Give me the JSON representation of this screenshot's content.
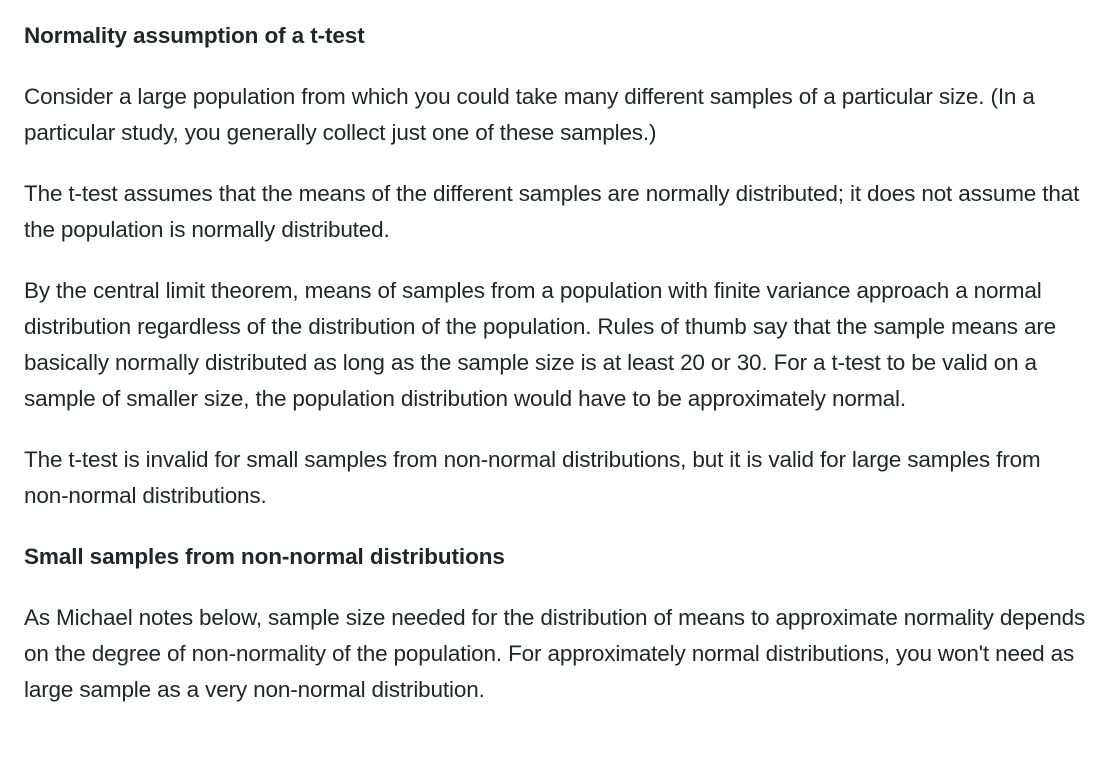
{
  "answer": {
    "heading_1": "Normality assumption of a t-test",
    "paragraphs_1": [
      "Consider a large population from which you could take many different samples of a particular size. (In a particular study, you generally collect just one of these samples.)",
      "The t-test assumes that the means of the different samples are normally distributed; it does not assume that the population is normally distributed.",
      "By the central limit theorem, means of samples from a population with finite variance approach a normal distribution regardless of the distribution of the population. Rules of thumb say that the sample means are basically normally distributed as long as the sample size is at least 20 or 30. For a t-test to be valid on a sample of smaller size, the population distribution would have to be approximately normal.",
      "The t-test is invalid for small samples from non-normal distributions, but it is valid for large samples from non-normal distributions."
    ],
    "heading_2": "Small samples from non-normal distributions",
    "paragraphs_2": [
      "As Michael notes below, sample size needed for the distribution of means to approximate normality depends on the degree of non-normality of the population. For approximately normal distributions, you won't need as large sample as a very non-normal distribution."
    ]
  }
}
